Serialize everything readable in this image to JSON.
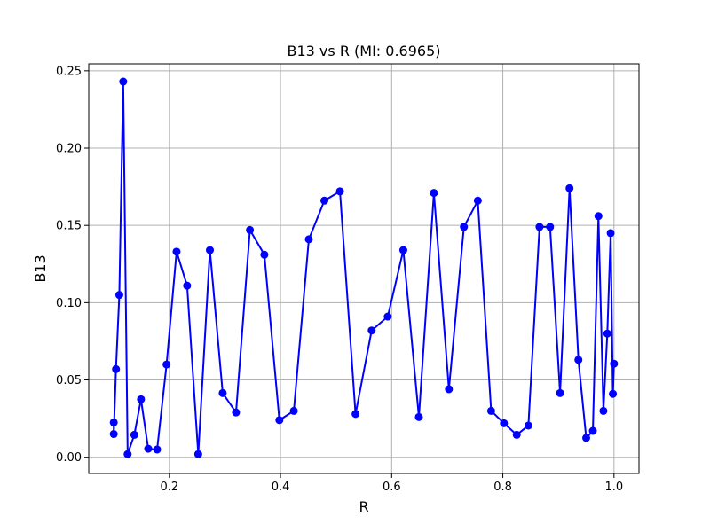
{
  "chart_data": {
    "type": "line",
    "title": "B13 vs R (MI: 0.6965)",
    "xlabel": "R",
    "ylabel": "B13",
    "xlim": [
      0.055,
      1.045
    ],
    "ylim": [
      -0.0105,
      0.2545
    ],
    "xticks": [
      0.2,
      0.4,
      0.6,
      0.8,
      1.0
    ],
    "xtick_labels": [
      "0.2",
      "0.4",
      "0.6",
      "0.8",
      "1.0"
    ],
    "yticks": [
      0.0,
      0.05,
      0.1,
      0.15,
      0.2,
      0.25
    ],
    "ytick_labels": [
      "0.00",
      "0.05",
      "0.10",
      "0.15",
      "0.20",
      "0.25"
    ],
    "grid": true,
    "marker": "circle",
    "color": "#0000ff",
    "series": [
      {
        "name": "B13",
        "x": [
          0.1,
          0.1,
          0.104,
          0.11,
          0.117,
          0.125,
          0.137,
          0.149,
          0.162,
          0.178,
          0.195,
          0.213,
          0.232,
          0.252,
          0.273,
          0.296,
          0.32,
          0.345,
          0.371,
          0.398,
          0.424,
          0.451,
          0.479,
          0.507,
          0.535,
          0.564,
          0.593,
          0.621,
          0.649,
          0.676,
          0.703,
          0.73,
          0.755,
          0.779,
          0.802,
          0.825,
          0.846,
          0.866,
          0.885,
          0.903,
          0.92,
          0.936,
          0.95,
          0.962,
          0.972,
          0.981,
          0.988,
          0.994,
          0.998,
          1.0
        ],
        "y": [
          0.0225,
          0.015,
          0.057,
          0.105,
          0.243,
          0.002,
          0.0145,
          0.0375,
          0.0055,
          0.005,
          0.06,
          0.133,
          0.111,
          0.002,
          0.134,
          0.0415,
          0.029,
          0.147,
          0.131,
          0.024,
          0.03,
          0.141,
          0.166,
          0.172,
          0.028,
          0.082,
          0.091,
          0.134,
          0.026,
          0.171,
          0.044,
          0.149,
          0.166,
          0.03,
          0.022,
          0.0145,
          0.0205,
          0.149,
          0.149,
          0.0415,
          0.174,
          0.063,
          0.0125,
          0.017,
          0.156,
          0.03,
          0.08,
          0.145,
          0.041,
          0.0605
        ]
      }
    ]
  }
}
